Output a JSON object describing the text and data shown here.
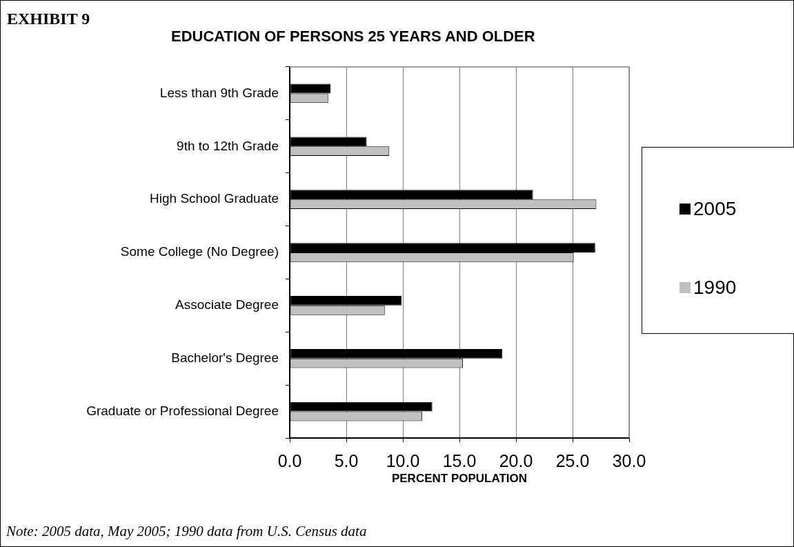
{
  "chart_data": {
    "type": "bar",
    "orientation": "horizontal",
    "title": "EDUCATION OF PERSONS 25 YEARS AND OLDER",
    "xlabel": "PERCENT POPULATION",
    "annotations": [
      "EXHIBIT 9",
      "Note:  2005 data, May 2005; 1990 data from U.S. Census data"
    ],
    "categories": [
      "Less than 9th Grade",
      "9th to 12th Grade",
      "High School Graduate",
      "Some College (No Degree)",
      "Associate Degree",
      "Bachelor's Degree",
      "Graduate or Professional Degree"
    ],
    "series": [
      {
        "name": "2005",
        "color": "#000000",
        "values": [
          3.6,
          6.8,
          21.5,
          27.0,
          9.9,
          18.8,
          12.6
        ]
      },
      {
        "name": "1990",
        "color": "#c0c0c0",
        "values": [
          3.4,
          8.8,
          27.1,
          25.1,
          8.4,
          15.3,
          11.7
        ]
      }
    ],
    "xlim": [
      0,
      30
    ],
    "xticks": [
      {
        "value": 0,
        "label": "0.0"
      },
      {
        "value": 5,
        "label": "5.0"
      },
      {
        "value": 10,
        "label": "10.0"
      },
      {
        "value": 15,
        "label": "15.0"
      },
      {
        "value": 20,
        "label": "20.0"
      },
      {
        "value": 25,
        "label": "25.0"
      },
      {
        "value": 30,
        "label": "30.0"
      }
    ],
    "grid": "x",
    "legend": "right"
  }
}
